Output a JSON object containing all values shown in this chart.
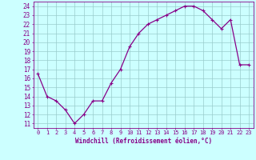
{
  "x": [
    0,
    1,
    2,
    3,
    4,
    5,
    6,
    7,
    8,
    9,
    10,
    11,
    12,
    13,
    14,
    15,
    16,
    17,
    18,
    19,
    20,
    21,
    22,
    23
  ],
  "y": [
    16.5,
    14.0,
    13.5,
    12.5,
    11.0,
    12.0,
    13.5,
    13.5,
    15.5,
    17.0,
    19.5,
    21.0,
    22.0,
    22.5,
    23.0,
    23.5,
    24.0,
    24.0,
    23.5,
    22.5,
    21.5,
    22.5,
    17.5,
    17.5
  ],
  "line_color": "#880088",
  "marker": "+",
  "marker_size": 3,
  "marker_lw": 0.8,
  "line_width": 0.9,
  "bg_color": "#ccffff",
  "grid_color": "#99cccc",
  "xlabel": "Windchill (Refroidissement éolien,°C)",
  "xlabel_color": "#880088",
  "ylabel_ticks": [
    11,
    12,
    13,
    14,
    15,
    16,
    17,
    18,
    19,
    20,
    21,
    22,
    23,
    24
  ],
  "xlim": [
    -0.5,
    23.5
  ],
  "ylim": [
    10.5,
    24.5
  ],
  "axis_color": "#880088",
  "tick_label_color": "#880088",
  "ytick_fontsize": 5.5,
  "xtick_fontsize": 5.0,
  "xlabel_fontsize": 5.5
}
